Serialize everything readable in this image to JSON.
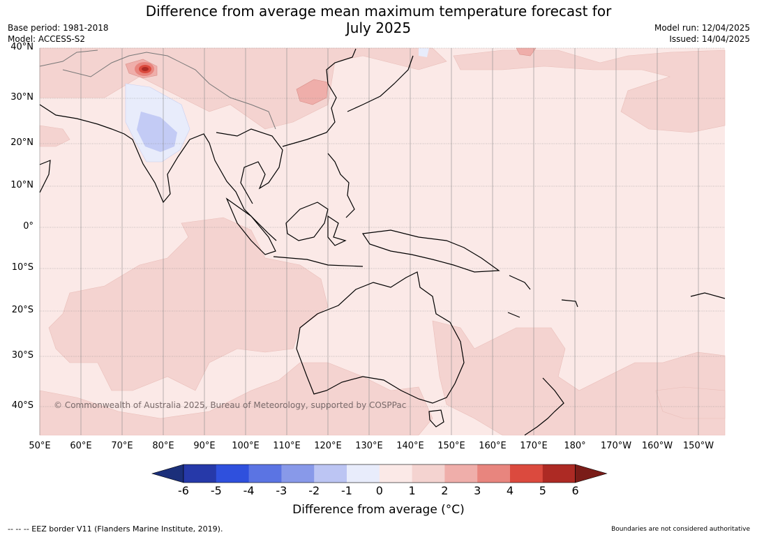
{
  "header": {
    "title_line1": "Difference from average mean maximum temperature forecast for",
    "title_line2": "July 2025",
    "base_period": "Base period: 1981-2018",
    "model": "Model: ACCESS-S2",
    "model_run": "Model run: 12/04/2025",
    "issued": "Issued: 14/04/2025"
  },
  "map": {
    "lat_labels": [
      "40°N",
      "30°N",
      "20°N",
      "10°N",
      "0°",
      "10°S",
      "20°S",
      "30°S",
      "40°S"
    ],
    "lon_labels": [
      "50°E",
      "60°E",
      "70°E",
      "80°E",
      "90°E",
      "100°E",
      "110°E",
      "120°E",
      "130°E",
      "140°E",
      "150°E",
      "160°E",
      "170°E",
      "180°",
      "170°W",
      "160°W",
      "150°W"
    ],
    "copyright": "© Commonwealth of Australia 2025, Bureau of Meteorology, supported by COSPPac",
    "colors": {
      "background_anomaly_0_1": "#fbe9e7",
      "anomaly_1_2": "#f4d3d0",
      "anomaly_2_3": "#efaeaa",
      "anomaly_minus1_0": "#e8ecfb",
      "anomaly_minus2_minus1": "#c3cbf5",
      "land_outline": "#000000",
      "grid": "#8a8a8a"
    }
  },
  "colorbar": {
    "ticks": [
      "-6",
      "-5",
      "-4",
      "-3",
      "-2",
      "-1",
      "0",
      "1",
      "2",
      "3",
      "4",
      "5",
      "6"
    ],
    "colors": [
      "#1b2f7a",
      "#2639a9",
      "#2f50dd",
      "#5b74e3",
      "#8899e9",
      "#bcc5f3",
      "#e8ecfb",
      "#fbe9e7",
      "#f4d3d0",
      "#efaeaa",
      "#e8857e",
      "#db4a3e",
      "#ad2a24",
      "#7a1c18"
    ],
    "label": "Difference from average (°C)"
  },
  "footer": {
    "eez_note": "--  --  -- EEZ border V11 (Flanders Marine Institute, 2019).",
    "boundaries_note": "Boundaries are not considered authoritative"
  }
}
